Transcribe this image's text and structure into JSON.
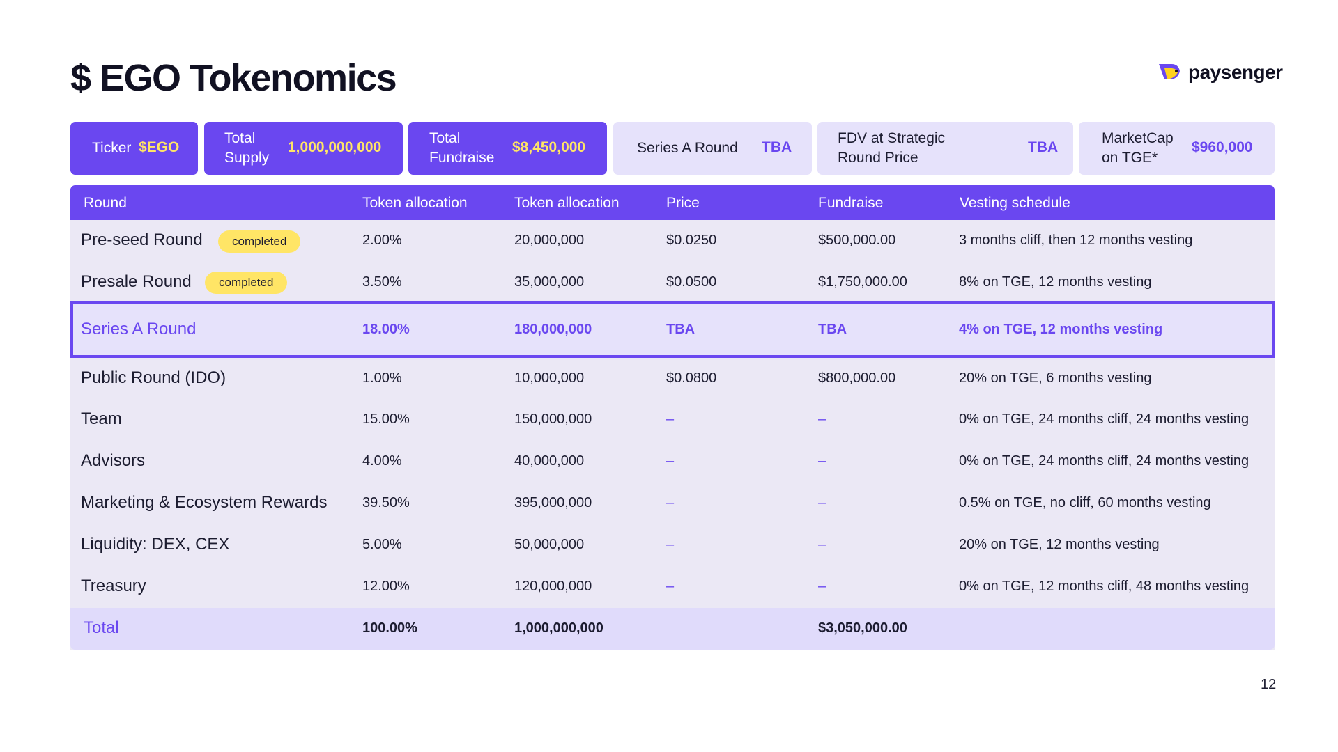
{
  "title": "$ EGO Tokenomics",
  "logo": {
    "name": "paysenger",
    "icon": "paysenger-bird-icon"
  },
  "cards": [
    {
      "label": "Ticker",
      "value": "$EGO"
    },
    {
      "label": "Total Supply",
      "value": "1,000,000,000"
    },
    {
      "label": "Total Fundraise",
      "value": "$8,450,000"
    },
    {
      "label": "Series A Round",
      "value": "TBA"
    },
    {
      "label": "FDV at Strategic Round Price",
      "value": "TBA"
    },
    {
      "label": "MarketCap on TGE*",
      "value": "$960,000"
    }
  ],
  "table": {
    "headers": [
      "Round",
      "Token allocation",
      "Token allocation",
      "Price",
      "Fundraise",
      "Vesting schedule"
    ],
    "rows": [
      {
        "round": "Pre-seed Round",
        "badge": "completed",
        "pct": "2.00%",
        "tokens": "20,000,000",
        "price": "$0.0250",
        "fundraise": "$500,000.00",
        "vesting": "3 months cliff, then 12 months vesting"
      },
      {
        "round": "Presale Round",
        "badge": "completed",
        "pct": "3.50%",
        "tokens": "35,000,000",
        "price": "$0.0500",
        "fundraise": "$1,750,000.00",
        "vesting": "8% on TGE, 12 months vesting"
      },
      {
        "round": "Series A Round",
        "pct": "18.00%",
        "tokens": "180,000,000",
        "price": "TBA",
        "fundraise": "TBA",
        "vesting": "4% on TGE, 12 months vesting"
      },
      {
        "round": "Public Round (IDO)",
        "pct": "1.00%",
        "tokens": "10,000,000",
        "price": "$0.0800",
        "fundraise": "$800,000.00",
        "vesting": "20% on TGE, 6 months vesting"
      },
      {
        "round": "Team",
        "pct": "15.00%",
        "tokens": "150,000,000",
        "price": "–",
        "fundraise": "–",
        "vesting": "0% on TGE, 24 months cliff, 24 months vesting"
      },
      {
        "round": "Advisors",
        "pct": "4.00%",
        "tokens": "40,000,000",
        "price": "–",
        "fundraise": "–",
        "vesting": "0% on TGE, 24 months cliff, 24 months vesting"
      },
      {
        "round": "Marketing & Ecosystem Rewards",
        "pct": "39.50%",
        "tokens": "395,000,000",
        "price": "–",
        "fundraise": "–",
        "vesting": "0.5% on TGE, no cliff, 60 months vesting"
      },
      {
        "round": "Liquidity: DEX, CEX",
        "pct": "5.00%",
        "tokens": "50,000,000",
        "price": "–",
        "fundraise": "–",
        "vesting": "20% on TGE, 12 months vesting"
      },
      {
        "round": "Treasury",
        "pct": "12.00%",
        "tokens": "120,000,000",
        "price": "–",
        "fundraise": "–",
        "vesting": "0% on TGE, 12 months cliff, 48 months vesting"
      }
    ],
    "total": {
      "round": "Total",
      "pct": "100.00%",
      "tokens": "1,000,000,000",
      "fundraise": "$3,050,000.00"
    }
  },
  "page_number": "12",
  "colors": {
    "accent": "#6a47f0",
    "highlight": "#ffe566",
    "row_bg": "#ebe8f5",
    "light_card": "#e6e2fb"
  }
}
